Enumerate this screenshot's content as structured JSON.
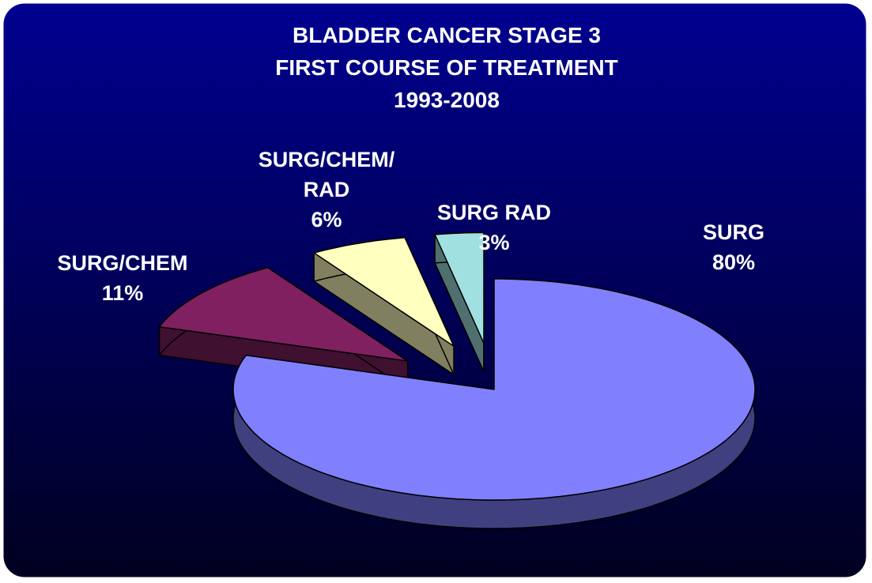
{
  "chart_data": {
    "type": "pie",
    "title": [
      "BLADDER CANCER STAGE 3",
      "FIRST COURSE OF TREATMENT",
      "1993-2008"
    ],
    "categories": [
      "SURG",
      "SURG/CHEM",
      "SURG/CHEM/RAD",
      "SURG RAD"
    ],
    "values": [
      80,
      11,
      6,
      3
    ],
    "value_labels": [
      "80%",
      "11%",
      "6%",
      "3%"
    ],
    "colors": [
      "#8080ff",
      "#802060",
      "#ffffc0",
      "#a0e0e0"
    ]
  }
}
